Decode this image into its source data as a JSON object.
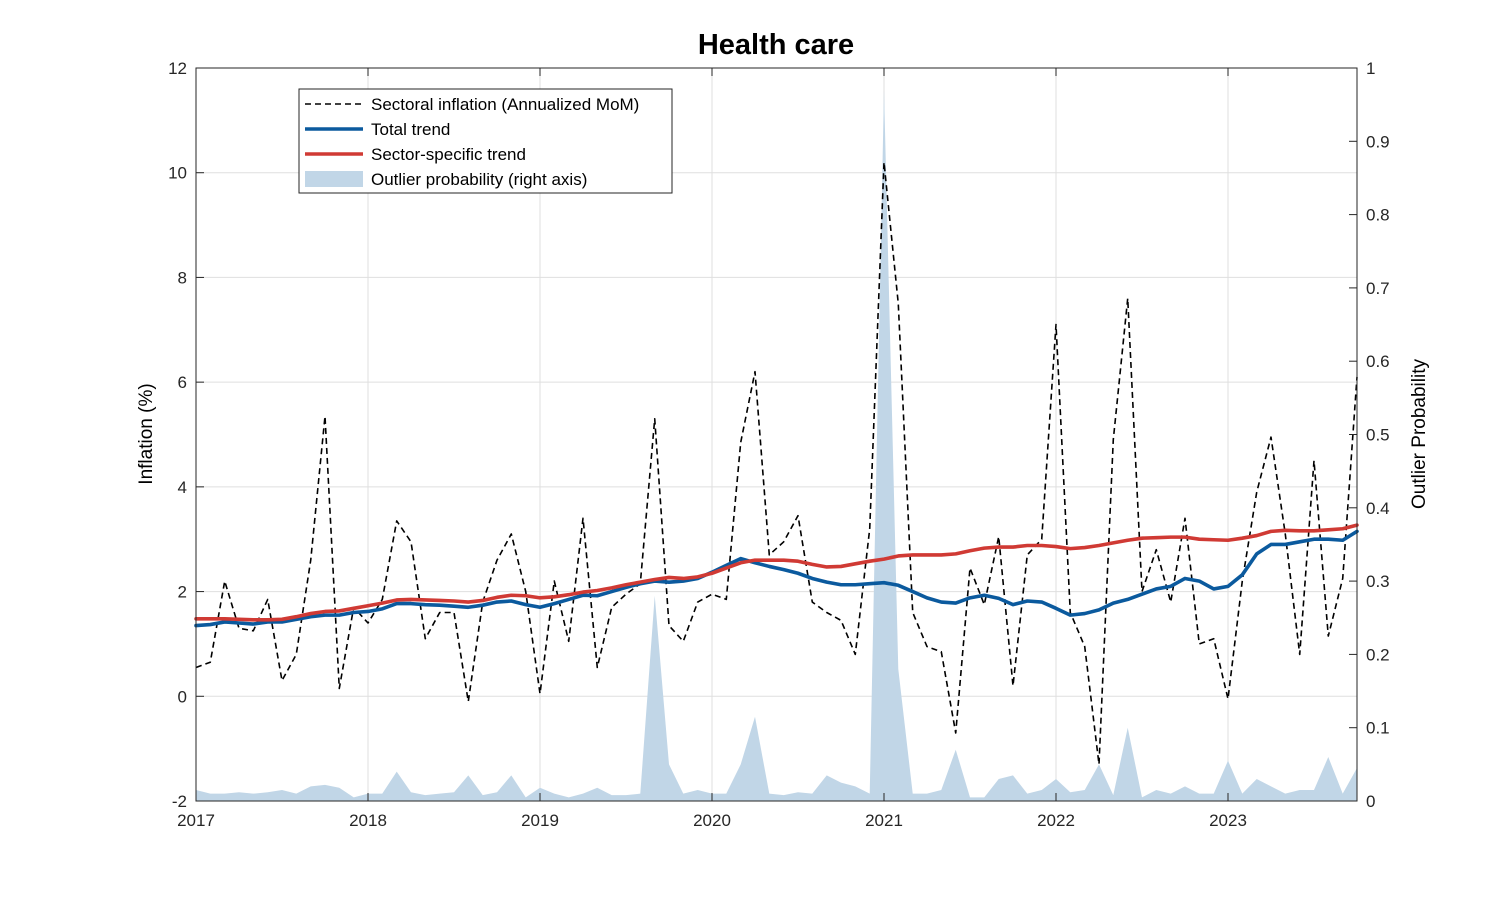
{
  "chart_data": {
    "type": "line",
    "title": "Health care",
    "xlabel": "",
    "ylabel": "Inflation (%)",
    "y2label": "Outlier Probability",
    "xlim": [
      2017.0,
      2023.75
    ],
    "ylim": [
      -2,
      12
    ],
    "y2lim": [
      0,
      1
    ],
    "x_ticks": [
      2017,
      2018,
      2019,
      2020,
      2021,
      2022,
      2023
    ],
    "x_tick_labels": [
      "2017",
      "2018",
      "2019",
      "2020",
      "2021",
      "2022",
      "2023"
    ],
    "y_ticks": [
      -2,
      0,
      2,
      4,
      6,
      8,
      10,
      12
    ],
    "y_tick_labels": [
      "-2",
      "0",
      "2",
      "4",
      "6",
      "8",
      "10",
      "12"
    ],
    "y2_ticks": [
      0,
      0.1,
      0.2,
      0.3,
      0.4,
      0.5,
      0.6,
      0.7,
      0.8,
      0.9,
      1
    ],
    "y2_tick_labels": [
      "0",
      "0.1",
      "0.2",
      "0.3",
      "0.4",
      "0.5",
      "0.6",
      "0.7",
      "0.8",
      "0.9",
      "1"
    ],
    "grid": true,
    "legend": {
      "placement": "top-left",
      "entries": [
        {
          "label": "Sectoral inflation (Annualized MoM)",
          "style": "dashed",
          "color": "#000000"
        },
        {
          "label": "Total trend",
          "style": "solid",
          "color": "#0b5a9e"
        },
        {
          "label": "Sector-specific trend",
          "style": "solid",
          "color": "#d03a34"
        },
        {
          "label": "Outlier probability (right axis)",
          "style": "area",
          "color": "#c1d6e7"
        }
      ]
    },
    "series": [
      {
        "name": "Sectoral inflation (Annualized MoM)",
        "axis": "left",
        "style": "dashed",
        "color": "#000000",
        "x": [
          2017.0,
          2017.083,
          2017.167,
          2017.25,
          2017.333,
          2017.417,
          2017.5,
          2017.583,
          2017.667,
          2017.75,
          2017.833,
          2017.917,
          2018.0,
          2018.083,
          2018.167,
          2018.25,
          2018.333,
          2018.417,
          2018.5,
          2018.583,
          2018.667,
          2018.75,
          2018.833,
          2018.917,
          2019.0,
          2019.083,
          2019.167,
          2019.25,
          2019.333,
          2019.417,
          2019.5,
          2019.583,
          2019.667,
          2019.75,
          2019.833,
          2019.917,
          2020.0,
          2020.083,
          2020.167,
          2020.25,
          2020.333,
          2020.417,
          2020.5,
          2020.583,
          2020.667,
          2020.75,
          2020.833,
          2020.917,
          2021.0,
          2021.083,
          2021.167,
          2021.25,
          2021.333,
          2021.417,
          2021.5,
          2021.583,
          2021.667,
          2021.75,
          2021.833,
          2021.917,
          2022.0,
          2022.083,
          2022.167,
          2022.25,
          2022.333,
          2022.417,
          2022.5,
          2022.583,
          2022.667,
          2022.75,
          2022.833,
          2022.917,
          2023.0,
          2023.083,
          2023.167,
          2023.25,
          2023.333,
          2023.417,
          2023.5,
          2023.583,
          2023.667,
          2023.75
        ],
        "values": [
          0.55,
          0.65,
          2.2,
          1.3,
          1.25,
          1.85,
          0.3,
          0.8,
          2.6,
          5.35,
          0.15,
          1.7,
          1.4,
          1.85,
          3.35,
          2.95,
          1.1,
          1.6,
          1.6,
          -0.1,
          1.8,
          2.6,
          3.1,
          2.0,
          0.05,
          2.2,
          1.05,
          3.4,
          0.55,
          1.7,
          1.95,
          2.15,
          5.3,
          1.35,
          1.05,
          1.8,
          1.95,
          1.85,
          4.85,
          6.2,
          2.7,
          2.95,
          3.45,
          1.8,
          1.6,
          1.45,
          0.8,
          3.2,
          10.2,
          7.5,
          1.6,
          0.95,
          0.85,
          -0.7,
          2.45,
          1.75,
          3.05,
          0.2,
          2.7,
          3.0,
          7.1,
          1.6,
          0.95,
          -1.3,
          4.9,
          7.6,
          2.0,
          2.8,
          1.8,
          3.4,
          1.0,
          1.1,
          -0.05,
          2.2,
          3.9,
          4.95,
          3.1,
          0.8,
          4.5,
          1.15,
          2.25,
          6.1
        ]
      },
      {
        "name": "Total trend",
        "axis": "left",
        "style": "solid",
        "color": "#0b5a9e",
        "x": [
          2017.0,
          2017.083,
          2017.167,
          2017.25,
          2017.333,
          2017.417,
          2017.5,
          2017.583,
          2017.667,
          2017.75,
          2017.833,
          2017.917,
          2018.0,
          2018.083,
          2018.167,
          2018.25,
          2018.333,
          2018.417,
          2018.5,
          2018.583,
          2018.667,
          2018.75,
          2018.833,
          2018.917,
          2019.0,
          2019.083,
          2019.167,
          2019.25,
          2019.333,
          2019.417,
          2019.5,
          2019.583,
          2019.667,
          2019.75,
          2019.833,
          2019.917,
          2020.0,
          2020.083,
          2020.167,
          2020.25,
          2020.333,
          2020.417,
          2020.5,
          2020.583,
          2020.667,
          2020.75,
          2020.833,
          2020.917,
          2021.0,
          2021.083,
          2021.167,
          2021.25,
          2021.333,
          2021.417,
          2021.5,
          2021.583,
          2021.667,
          2021.75,
          2021.833,
          2021.917,
          2022.0,
          2022.083,
          2022.167,
          2022.25,
          2022.333,
          2022.417,
          2022.5,
          2022.583,
          2022.667,
          2022.75,
          2022.833,
          2022.917,
          2023.0,
          2023.083,
          2023.167,
          2023.25,
          2023.333,
          2023.417,
          2023.5,
          2023.583,
          2023.667,
          2023.75
        ],
        "values": [
          1.35,
          1.37,
          1.42,
          1.4,
          1.38,
          1.42,
          1.42,
          1.47,
          1.52,
          1.55,
          1.55,
          1.6,
          1.62,
          1.67,
          1.77,
          1.77,
          1.75,
          1.74,
          1.72,
          1.7,
          1.74,
          1.8,
          1.82,
          1.75,
          1.7,
          1.77,
          1.85,
          1.93,
          1.92,
          2.0,
          2.08,
          2.15,
          2.2,
          2.18,
          2.2,
          2.25,
          2.37,
          2.5,
          2.63,
          2.55,
          2.48,
          2.42,
          2.35,
          2.25,
          2.18,
          2.13,
          2.13,
          2.15,
          2.17,
          2.12,
          2.0,
          1.88,
          1.8,
          1.78,
          1.88,
          1.93,
          1.87,
          1.75,
          1.82,
          1.8,
          1.68,
          1.55,
          1.58,
          1.65,
          1.78,
          1.85,
          1.95,
          2.05,
          2.1,
          2.25,
          2.2,
          2.05,
          2.1,
          2.32,
          2.72,
          2.9,
          2.9,
          2.95,
          3.0,
          3.0,
          2.98,
          3.15
        ]
      },
      {
        "name": "Sector-specific trend",
        "axis": "left",
        "style": "solid",
        "color": "#d03a34",
        "x": [
          2017.0,
          2017.083,
          2017.167,
          2017.25,
          2017.333,
          2017.417,
          2017.5,
          2017.583,
          2017.667,
          2017.75,
          2017.833,
          2017.917,
          2018.0,
          2018.083,
          2018.167,
          2018.25,
          2018.333,
          2018.417,
          2018.5,
          2018.583,
          2018.667,
          2018.75,
          2018.833,
          2018.917,
          2019.0,
          2019.083,
          2019.167,
          2019.25,
          2019.333,
          2019.417,
          2019.5,
          2019.583,
          2019.667,
          2019.75,
          2019.833,
          2019.917,
          2020.0,
          2020.083,
          2020.167,
          2020.25,
          2020.333,
          2020.417,
          2020.5,
          2020.583,
          2020.667,
          2020.75,
          2020.833,
          2020.917,
          2021.0,
          2021.083,
          2021.167,
          2021.25,
          2021.333,
          2021.417,
          2021.5,
          2021.583,
          2021.667,
          2021.75,
          2021.833,
          2021.917,
          2022.0,
          2022.083,
          2022.167,
          2022.25,
          2022.333,
          2022.417,
          2022.5,
          2022.583,
          2022.667,
          2022.75,
          2022.833,
          2022.917,
          2023.0,
          2023.083,
          2023.167,
          2023.25,
          2023.333,
          2023.417,
          2023.5,
          2023.583,
          2023.667,
          2023.75
        ],
        "values": [
          1.48,
          1.48,
          1.48,
          1.47,
          1.46,
          1.46,
          1.47,
          1.52,
          1.58,
          1.62,
          1.63,
          1.68,
          1.73,
          1.78,
          1.84,
          1.85,
          1.84,
          1.83,
          1.82,
          1.8,
          1.83,
          1.89,
          1.93,
          1.92,
          1.88,
          1.9,
          1.94,
          1.99,
          2.02,
          2.07,
          2.13,
          2.18,
          2.23,
          2.27,
          2.25,
          2.28,
          2.35,
          2.45,
          2.55,
          2.6,
          2.6,
          2.6,
          2.58,
          2.52,
          2.47,
          2.48,
          2.53,
          2.58,
          2.62,
          2.68,
          2.7,
          2.7,
          2.7,
          2.72,
          2.78,
          2.83,
          2.85,
          2.85,
          2.88,
          2.88,
          2.86,
          2.82,
          2.84,
          2.88,
          2.93,
          2.98,
          3.02,
          3.03,
          3.04,
          3.04,
          3.0,
          2.99,
          2.98,
          3.02,
          3.07,
          3.15,
          3.17,
          3.16,
          3.16,
          3.18,
          3.2,
          3.27
        ]
      },
      {
        "name": "Outlier probability (right axis)",
        "axis": "right",
        "style": "area",
        "color": "#c1d6e7",
        "x": [
          2017.0,
          2017.083,
          2017.167,
          2017.25,
          2017.333,
          2017.417,
          2017.5,
          2017.583,
          2017.667,
          2017.75,
          2017.833,
          2017.917,
          2018.0,
          2018.083,
          2018.167,
          2018.25,
          2018.333,
          2018.417,
          2018.5,
          2018.583,
          2018.667,
          2018.75,
          2018.833,
          2018.917,
          2019.0,
          2019.083,
          2019.167,
          2019.25,
          2019.333,
          2019.417,
          2019.5,
          2019.583,
          2019.667,
          2019.75,
          2019.833,
          2019.917,
          2020.0,
          2020.083,
          2020.167,
          2020.25,
          2020.333,
          2020.417,
          2020.5,
          2020.583,
          2020.667,
          2020.75,
          2020.833,
          2020.917,
          2021.0,
          2021.083,
          2021.167,
          2021.25,
          2021.333,
          2021.417,
          2021.5,
          2021.583,
          2021.667,
          2021.75,
          2021.833,
          2021.917,
          2022.0,
          2022.083,
          2022.167,
          2022.25,
          2022.333,
          2022.417,
          2022.5,
          2022.583,
          2022.667,
          2022.75,
          2022.833,
          2022.917,
          2023.0,
          2023.083,
          2023.167,
          2023.25,
          2023.333,
          2023.417,
          2023.5,
          2023.583,
          2023.667,
          2023.75
        ],
        "values": [
          0.015,
          0.01,
          0.01,
          0.012,
          0.01,
          0.012,
          0.015,
          0.01,
          0.02,
          0.022,
          0.018,
          0.005,
          0.01,
          0.01,
          0.04,
          0.012,
          0.008,
          0.01,
          0.012,
          0.035,
          0.008,
          0.012,
          0.035,
          0.005,
          0.018,
          0.01,
          0.005,
          0.01,
          0.018,
          0.008,
          0.008,
          0.01,
          0.28,
          0.05,
          0.01,
          0.015,
          0.01,
          0.01,
          0.05,
          0.115,
          0.01,
          0.008,
          0.012,
          0.01,
          0.035,
          0.025,
          0.02,
          0.01,
          0.97,
          0.18,
          0.01,
          0.01,
          0.015,
          0.07,
          0.005,
          0.005,
          0.03,
          0.035,
          0.01,
          0.015,
          0.03,
          0.012,
          0.015,
          0.05,
          0.008,
          0.1,
          0.005,
          0.015,
          0.01,
          0.02,
          0.01,
          0.01,
          0.055,
          0.01,
          0.03,
          0.02,
          0.01,
          0.015,
          0.015,
          0.06,
          0.01,
          0.045
        ]
      }
    ]
  }
}
